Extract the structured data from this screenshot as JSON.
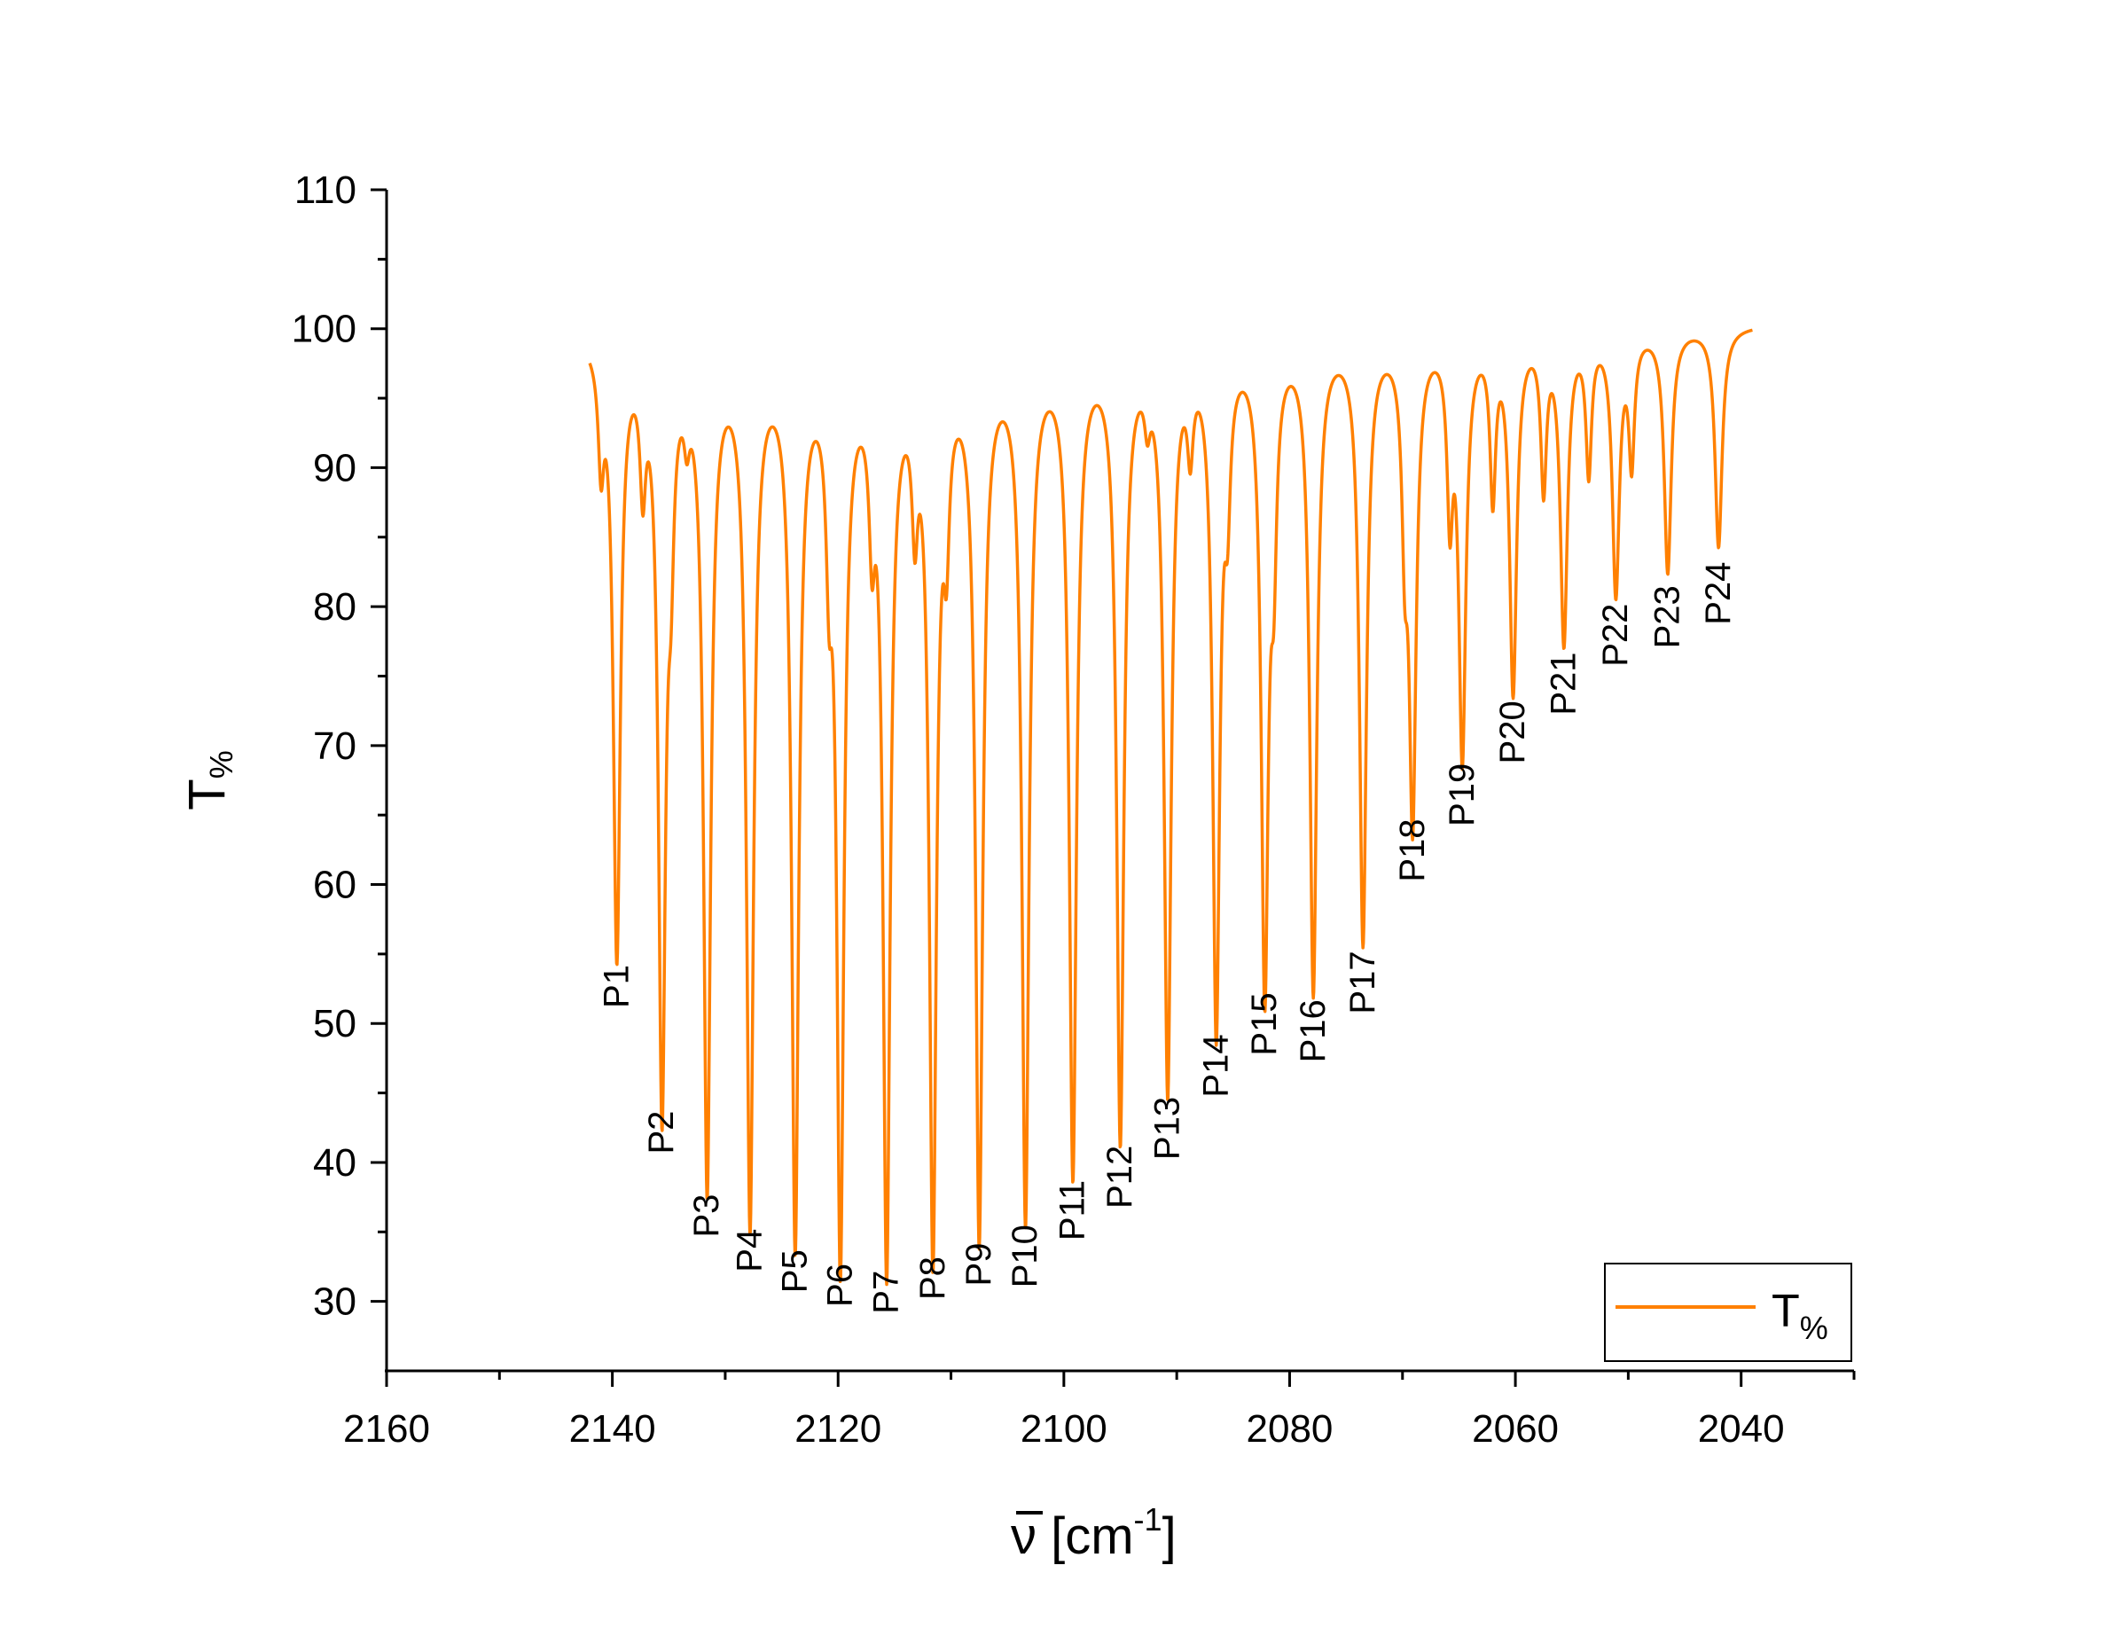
{
  "chart_data": {
    "type": "line",
    "xlabel": "ν̄ [cm⁻¹]",
    "ylabel": "T%",
    "xlim": [
      2160,
      2030
    ],
    "ylim": [
      25,
      110
    ],
    "x_reversed": true,
    "x_ticks": [
      2160,
      2140,
      2120,
      2100,
      2080,
      2060,
      2040
    ],
    "y_ticks": [
      30,
      40,
      50,
      60,
      70,
      80,
      90,
      100,
      110
    ],
    "legend": {
      "position": "bottom-right",
      "entries": [
        "T%"
      ]
    },
    "series": [
      {
        "name": "T%",
        "color": "#ff8000",
        "baseline": [
          [
            2142.0,
            99.7
          ],
          [
            2130.0,
            98.5
          ],
          [
            2115.0,
            97.5
          ],
          [
            2100.0,
            98.8
          ],
          [
            2080.0,
            99.8
          ],
          [
            2060.0,
            100.1
          ],
          [
            2039.0,
            100.3
          ]
        ],
        "peaks": [
          {
            "label": "P1",
            "x": 2139.6,
            "min": 55.5
          },
          {
            "label": "P2",
            "x": 2135.6,
            "min": 45.0
          },
          {
            "label": "P3",
            "x": 2131.6,
            "min": 39.0
          },
          {
            "label": "P4",
            "x": 2127.8,
            "min": 36.5
          },
          {
            "label": "P5",
            "x": 2123.8,
            "min": 35.0
          },
          {
            "label": "P6",
            "x": 2119.8,
            "min": 34.0
          },
          {
            "label": "P7",
            "x": 2115.7,
            "min": 33.5
          },
          {
            "label": "P8",
            "x": 2111.6,
            "min": 34.5
          },
          {
            "label": "P9",
            "x": 2107.5,
            "min": 35.5
          },
          {
            "label": "P10",
            "x": 2103.4,
            "min": 36.8
          },
          {
            "label": "P11",
            "x": 2099.2,
            "min": 40.0
          },
          {
            "label": "P12",
            "x": 2095.0,
            "min": 42.5
          },
          {
            "label": "P13",
            "x": 2090.8,
            "min": 46.0
          },
          {
            "label": "P14",
            "x": 2086.5,
            "min": 50.5
          },
          {
            "label": "P15",
            "x": 2082.2,
            "min": 53.5
          },
          {
            "label": "P16",
            "x": 2077.9,
            "min": 53.0
          },
          {
            "label": "P17",
            "x": 2073.5,
            "min": 56.5
          },
          {
            "label": "P18",
            "x": 2069.1,
            "min": 66.0
          },
          {
            "label": "P19",
            "x": 2064.7,
            "min": 70.0
          },
          {
            "label": "P20",
            "x": 2060.2,
            "min": 74.5
          },
          {
            "label": "P21",
            "x": 2055.7,
            "min": 78.0
          },
          {
            "label": "P22",
            "x": 2051.1,
            "min": 81.5
          },
          {
            "label": "P23",
            "x": 2046.5,
            "min": 82.8
          },
          {
            "label": "P24",
            "x": 2042.0,
            "min": 84.5
          }
        ],
        "minor_bands": [
          {
            "x": 2141.0,
            "min": 92.0
          },
          {
            "x": 2137.3,
            "min": 91.0
          },
          {
            "x": 2134.8,
            "min": 89.5
          },
          {
            "x": 2133.4,
            "min": 95.5
          },
          {
            "x": 2120.8,
            "min": 87.5
          },
          {
            "x": 2117.0,
            "min": 88.5
          },
          {
            "x": 2113.2,
            "min": 89.0
          },
          {
            "x": 2110.4,
            "min": 88.5
          },
          {
            "x": 2092.6,
            "min": 96.0
          },
          {
            "x": 2088.8,
            "min": 93.5
          },
          {
            "x": 2085.5,
            "min": 91.0
          },
          {
            "x": 2081.4,
            "min": 88.0
          },
          {
            "x": 2069.8,
            "min": 88.5
          },
          {
            "x": 2065.8,
            "min": 88.5
          },
          {
            "x": 2062.0,
            "min": 89.0
          },
          {
            "x": 2057.5,
            "min": 89.5
          },
          {
            "x": 2053.5,
            "min": 90.5
          },
          {
            "x": 2049.7,
            "min": 91.2
          }
        ]
      }
    ]
  }
}
